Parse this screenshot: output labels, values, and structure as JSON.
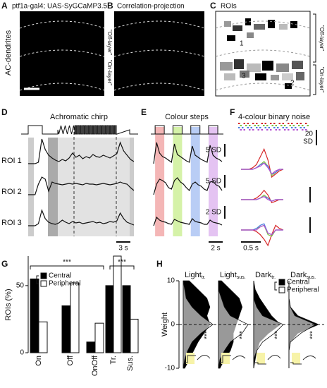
{
  "A": {
    "label": "A",
    "title": "ptf1a-gal4; UAS-SyGCaMP3.5",
    "ylabel": "AC-dendrites",
    "layers": [
      "\"Off-layer\"",
      "\"On-layer\""
    ]
  },
  "B": {
    "label": "B",
    "title": "Correlation-projection"
  },
  "C": {
    "label": "C",
    "title": "ROIs",
    "roi_labels": [
      "1",
      "3",
      "2"
    ],
    "layers": [
      "\"Off-layer\"",
      "\"On-layer\""
    ]
  },
  "D": {
    "label": "D",
    "title": "Achromatic chirp",
    "scalebar": "3 s",
    "color": "#111111",
    "traces": [
      {
        "name": "ROI 1",
        "values": [
          0,
          0,
          0,
          0.2,
          3.5,
          2,
          1.2,
          0.8,
          0.5,
          0.3,
          0.6,
          0.4,
          0.8,
          1.5,
          0.9,
          1.2,
          0.7,
          1.0,
          0.8,
          1.3,
          1.0,
          0.9,
          1.2,
          1.0,
          0.8,
          1.1,
          1.4,
          3.0,
          1.8,
          1.2,
          0.6,
          0.3
        ]
      },
      {
        "name": "ROI 2",
        "values": [
          0,
          0,
          0,
          1.5,
          2.5,
          2.2,
          0.5,
          1.8,
          1.6,
          1.5,
          1.4,
          1.5,
          1.6,
          1.5,
          1.6,
          1.5,
          1.4,
          1.6,
          1.5,
          1.5,
          1.4,
          1.5,
          1.6,
          1.5,
          1.4,
          1.5,
          1.6,
          1.8,
          1.6,
          1.5,
          1.0,
          0.6
        ]
      },
      {
        "name": "ROI 3",
        "values": [
          0,
          0,
          0,
          0.3,
          2.2,
          1.0,
          0.5,
          0.3,
          0.2,
          0.4,
          0.8,
          0.5,
          0.3,
          0.6,
          0.4,
          0.5,
          0.3,
          0.4,
          0.5,
          0.6,
          0.4,
          0.5,
          0.3,
          0.4,
          0.6,
          0.5,
          0.7,
          1.8,
          1.0,
          0.5,
          0.3,
          0.1
        ]
      }
    ]
  },
  "E": {
    "label": "E",
    "title": "Colour steps",
    "scalebars": [
      "5 SD",
      "5 SD",
      "2 SD"
    ],
    "time_scalebar": "2 s",
    "step_colors": [
      "#f4b6b6",
      "#d5f2a8",
      "#b9cdf5",
      "#e4c3f2"
    ],
    "traces": [
      {
        "values": [
          0,
          3,
          1.5,
          1,
          0.8,
          0.5,
          0.2,
          2.8,
          1.3,
          1,
          0.7,
          0.4,
          0.2,
          2.5,
          1.2,
          0.9,
          0.6,
          0.4,
          0.2,
          2.6,
          1.2,
          0.8,
          0.6,
          0.3
        ]
      },
      {
        "values": [
          0,
          1.5,
          2.2,
          2,
          1.7,
          1,
          0.8,
          2,
          2.4,
          1.8,
          1.5,
          1,
          0.6,
          1.5,
          1.8,
          1.4,
          1.2,
          0.8,
          0.6,
          1.8,
          1.9,
          1.4,
          1.2,
          0.6
        ]
      },
      {
        "values": [
          0,
          1.2,
          0.8,
          0.6,
          0.5,
          0.3,
          0.2,
          0.9,
          0.7,
          0.5,
          0.4,
          0.3,
          0.2,
          1.0,
          0.6,
          0.5,
          0.4,
          0.2,
          0.2,
          0.8,
          0.5,
          0.4,
          0.3,
          0.1
        ]
      }
    ]
  },
  "F": {
    "label": "F",
    "title": "4-colour binary noise",
    "scale_label": [
      "20",
      "SD"
    ],
    "time_scalebar": "0.5 s",
    "colors": [
      "#d62728",
      "#7cc242",
      "#4a7fe0",
      "#b44fd1"
    ],
    "rois": [
      {
        "kernels": [
          [
            0,
            0,
            0,
            0.1,
            0.3,
            0.8,
            1.3,
            0.6,
            -0.5,
            -0.3,
            -0.1,
            0
          ],
          [
            0,
            0,
            0,
            0,
            0.1,
            0.3,
            0.5,
            0.2,
            -0.4,
            -0.2,
            0,
            0
          ],
          [
            0,
            0,
            0,
            0,
            0.1,
            0.3,
            0.4,
            0.2,
            -0.3,
            -0.2,
            0,
            0
          ],
          [
            0,
            0,
            0,
            0,
            0.1,
            0.2,
            0.4,
            0.1,
            -0.3,
            -0.1,
            0,
            0
          ]
        ]
      },
      {
        "kernels": [
          [
            0,
            0,
            0,
            0,
            0.1,
            0.3,
            0.6,
            0.3,
            -0.2,
            -0.1,
            0,
            0
          ],
          [
            0,
            0,
            0,
            0,
            0,
            0.1,
            0.3,
            0.1,
            -0.1,
            0,
            0,
            0
          ],
          [
            0,
            0,
            0,
            0,
            0,
            0.1,
            0.2,
            0.1,
            -0.1,
            0,
            0,
            0
          ],
          [
            0,
            0,
            0,
            0,
            0,
            0.1,
            0.2,
            0,
            -0.1,
            0,
            0,
            0
          ]
        ]
      },
      {
        "kernels": [
          [
            0,
            0,
            0,
            0,
            -0.1,
            -0.3,
            -0.6,
            -1.0,
            -0.3,
            0.3,
            0.1,
            0
          ],
          [
            0,
            0,
            0,
            0,
            0.1,
            0.2,
            0.3,
            -0.3,
            -0.4,
            0,
            0,
            0
          ],
          [
            0,
            0,
            0,
            0,
            0.1,
            0.3,
            0.4,
            -0.2,
            -0.3,
            0,
            0,
            0
          ],
          [
            0,
            0,
            0,
            0,
            0,
            0.2,
            0.3,
            -0.2,
            -0.3,
            0,
            0,
            0
          ]
        ]
      }
    ]
  },
  "G": {
    "label": "G",
    "type": "bar",
    "ylabel": "ROIs (%)",
    "ylim": [
      0,
      72
    ],
    "yticks": [
      0,
      50
    ],
    "legend": [
      "Central",
      "Peripheral"
    ],
    "colors": [
      "#000000",
      "#ffffff"
    ],
    "charts": [
      {
        "categories": [
          "On",
          "Off",
          "OnOff"
        ],
        "series": [
          {
            "values": [
              55,
              35,
              8
            ]
          },
          {
            "values": [
              23,
              52,
              22
            ]
          }
        ],
        "significance": "***"
      },
      {
        "categories": [
          "Tr.",
          "Sus."
        ],
        "series": [
          {
            "values": [
              50,
              50
            ]
          },
          {
            "values": [
              72,
              25
            ]
          }
        ],
        "significance": "***"
      }
    ]
  },
  "H": {
    "label": "H",
    "type": "density",
    "ylabel": "Weight",
    "ylim": [
      -10,
      10
    ],
    "yticks": [
      -10,
      0,
      10
    ],
    "y": [
      -10,
      -8,
      -6,
      -4,
      -2,
      0,
      2,
      4,
      6,
      8,
      10
    ],
    "xlim": [
      0,
      1
    ],
    "legend": [
      "Central",
      "Peripheral"
    ],
    "panels": [
      {
        "title": {
          "main": "Light",
          "sub": "tr."
        },
        "significance": "***",
        "central": [
          0.05,
          0.2,
          0.35,
          0.5,
          0.7,
          0.9,
          0.8,
          0.9,
          0.8,
          0.5,
          0.2
        ],
        "peripheral": [
          0,
          0.05,
          0.15,
          0.3,
          0.6,
          1.0,
          0.6,
          0.3,
          0.1,
          0.05,
          0
        ]
      },
      {
        "title": {
          "main": "Light",
          "sub": "sus."
        },
        "significance": "***",
        "central": [
          0.05,
          0.2,
          0.4,
          0.5,
          0.5,
          0.6,
          0.7,
          0.8,
          0.7,
          0.4,
          0.1
        ],
        "peripheral": [
          0,
          0.05,
          0.2,
          0.4,
          0.8,
          1.0,
          0.4,
          0.2,
          0.1,
          0,
          0
        ]
      },
      {
        "title": {
          "main": "Dark",
          "sub": "tr."
        },
        "significance": "***",
        "central": [
          0,
          0.05,
          0.1,
          0.2,
          0.5,
          0.9,
          0.6,
          0.4,
          0.2,
          0.05,
          0
        ],
        "peripheral": [
          0,
          0,
          0.1,
          0.3,
          0.7,
          1.0,
          0.3,
          0.1,
          0,
          0,
          0
        ]
      },
      {
        "title": {
          "main": "Dark",
          "sub": "sus."
        },
        "significance": "***",
        "central": [
          0,
          0,
          0,
          0.05,
          0.3,
          1.0,
          0.3,
          0.05,
          0,
          0,
          0
        ],
        "peripheral": [
          0,
          0,
          0,
          0.05,
          0.4,
          0.9,
          0.2,
          0.05,
          0,
          0,
          0
        ]
      }
    ]
  }
}
